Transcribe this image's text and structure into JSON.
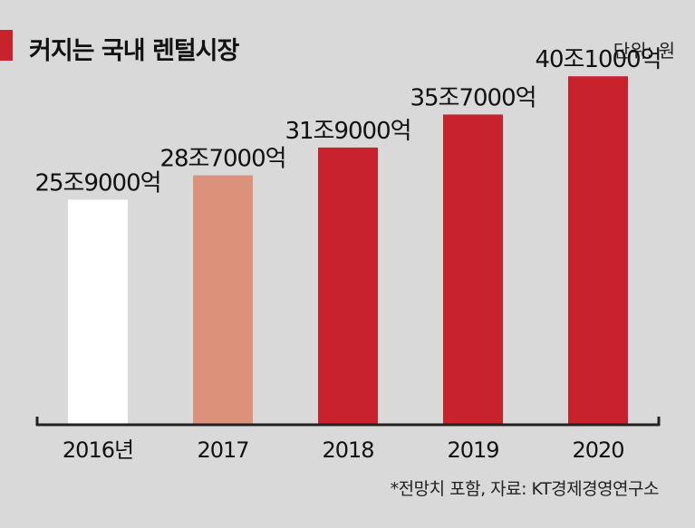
{
  "title": "커지는 국내 렌털시장",
  "unit": "단위: 원",
  "source": "*전망치 포함, 자료: KT경제경영연구소",
  "colors": {
    "accent": "#c8232c",
    "bars": [
      "#ffffff",
      "#dc917a",
      "#c8232c",
      "#c8232c",
      "#c8232c"
    ],
    "axis": "#222222"
  },
  "chart_data": {
    "type": "bar",
    "categories": [
      "2016년",
      "2017",
      "2018",
      "2019",
      "2020"
    ],
    "values": [
      25.9,
      28.7,
      31.9,
      35.7,
      40.1
    ],
    "value_labels": [
      "25조9000억",
      "28조7000억",
      "31조9000억",
      "35조7000억",
      "40조1000억"
    ],
    "title": "커지는 국내 렌털시장",
    "xlabel": "",
    "ylabel": "",
    "ylim": [
      0,
      42
    ],
    "grid": false,
    "legend": "none"
  }
}
